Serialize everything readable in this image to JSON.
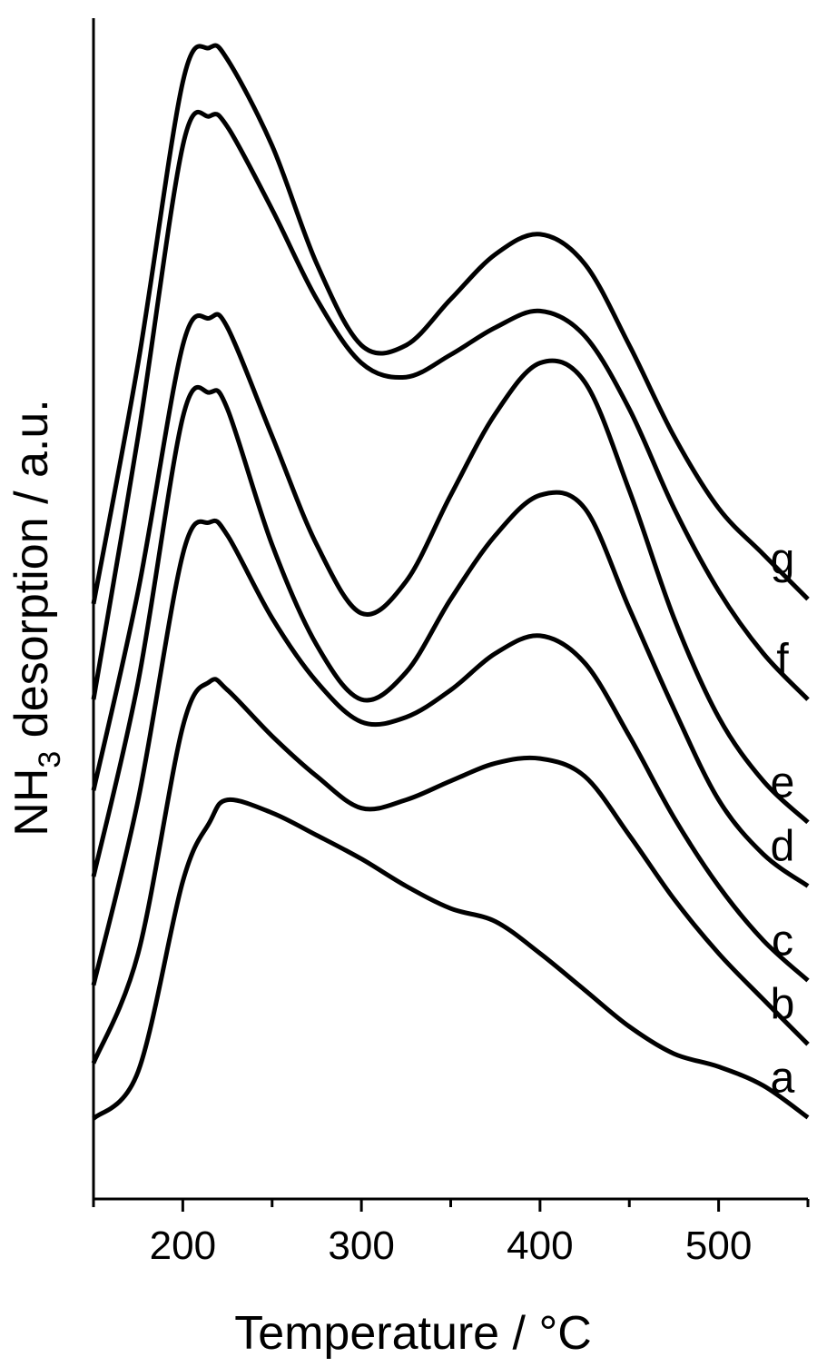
{
  "chart_data": {
    "type": "line",
    "x_label": "Temperature / °C",
    "y_label": "NH3 desorption / a.u.",
    "x": [
      150,
      175,
      200,
      215,
      225,
      250,
      275,
      300,
      325,
      350,
      375,
      400,
      425,
      450,
      475,
      500,
      525,
      550
    ],
    "xlim": [
      150,
      550
    ],
    "xticks": [
      200,
      300,
      400,
      500
    ],
    "xminor_ticks": [
      150,
      250,
      350,
      450,
      550
    ],
    "ylim": [
      0,
      100
    ],
    "series": [
      {
        "name": "a",
        "color": "#000000",
        "values": [
          6.8,
          10.8,
          26.9,
          31.9,
          33.8,
          32.7,
          30.8,
          28.8,
          26.5,
          24.6,
          23.5,
          20.8,
          17.7,
          14.6,
          12.3,
          11.2,
          9.6,
          6.9
        ]
      },
      {
        "name": "b",
        "color": "#000000",
        "values": [
          11.5,
          20.8,
          40,
          43.8,
          43.1,
          39.2,
          35.8,
          33.1,
          33.8,
          35.4,
          36.9,
          37.3,
          35.8,
          30.8,
          25.4,
          20.8,
          16.9,
          13.1
        ]
      },
      {
        "name": "c",
        "color": "#000000",
        "values": [
          18.1,
          33.8,
          54.6,
          57.3,
          56.2,
          49.2,
          43.8,
          40.4,
          40.8,
          43.1,
          46.2,
          47.7,
          45.4,
          39.2,
          32.3,
          26.5,
          21.9,
          18.5
        ]
      },
      {
        "name": "d",
        "color": "#000000",
        "values": [
          27.3,
          43.8,
          66.2,
          68.3,
          66.9,
          55.4,
          46.9,
          42.3,
          44.6,
          50.8,
          56.2,
          59.6,
          58.5,
          50,
          41.5,
          33.8,
          29.2,
          26.5
        ]
      },
      {
        "name": "e",
        "color": "#000000",
        "values": [
          34.6,
          51.5,
          72.3,
          74.6,
          73.8,
          64.6,
          55.4,
          49.6,
          52.3,
          59.6,
          66.5,
          70.8,
          69.2,
          60,
          49.2,
          40.8,
          35.4,
          31.9
        ]
      },
      {
        "name": "f",
        "color": "#000000",
        "values": [
          42.3,
          64.6,
          89.2,
          91.7,
          90.8,
          83.8,
          76.2,
          70.8,
          69.6,
          71.5,
          73.8,
          75.2,
          73.1,
          66.9,
          58.5,
          51.5,
          46.2,
          42.3
        ]
      },
      {
        "name": "g",
        "color": "#000000",
        "values": [
          50.4,
          70.8,
          94.6,
          97.5,
          96.5,
          89.2,
          79.2,
          72.3,
          72.3,
          76.2,
          80,
          81.7,
          79.2,
          72.3,
          64.6,
          58.5,
          54.6,
          50.8
        ]
      }
    ]
  }
}
